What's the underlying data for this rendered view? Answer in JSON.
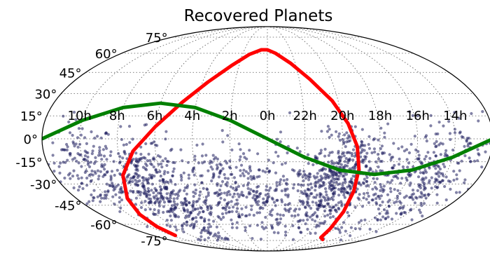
{
  "chart_data": {
    "type": "scatter",
    "title": "Recovered Planets",
    "projection": "mollweide",
    "grid": true,
    "lat_tick_labels": [
      "75°",
      "60°",
      "45°",
      "30°",
      "15°",
      "0°",
      "-15°",
      "-30°",
      "-45°",
      "-60°",
      "-75°"
    ],
    "lat_ticks_deg": [
      75,
      60,
      45,
      30,
      15,
      0,
      -15,
      -30,
      -45,
      -60,
      -75
    ],
    "lon_tick_labels": [
      "10h",
      "8h",
      "6h",
      "4h",
      "2h",
      "0h",
      "22h",
      "20h",
      "18h",
      "16h",
      "14h"
    ],
    "lon_ticks_deg": [
      -150,
      -120,
      -90,
      -60,
      -30,
      0,
      30,
      60,
      90,
      120,
      150
    ],
    "colors": {
      "points": "#1c1c5c",
      "galactic_plane": "#ff0000",
      "ecliptic": "#008000",
      "grid": "#555555",
      "outline": "#000000"
    },
    "galactic_plane": {
      "lon": [
        -145,
        -142,
        -138,
        -132,
        -122,
        -108,
        -90,
        -72,
        -55,
        -38,
        -22,
        -8,
        0,
        10,
        25,
        40,
        55,
        65,
        72,
        76,
        78,
        80,
        84,
        90,
        100
      ],
      "lat": [
        -70,
        -62,
        -52,
        -40,
        -24,
        -8,
        8,
        24,
        38,
        50,
        59,
        63,
        63,
        60,
        52,
        40,
        25,
        10,
        -5,
        -20,
        -35,
        -50,
        -64,
        -72,
        -74
      ]
    },
    "ecliptic": {
      "lon": [
        -180,
        -150,
        -120,
        -90,
        -60,
        -30,
        0,
        30,
        60,
        90,
        120,
        150,
        180
      ],
      "lat": [
        0,
        12,
        20.5,
        23.4,
        20.5,
        12,
        0,
        -12,
        -20.5,
        -23.4,
        -20.5,
        -12,
        0
      ]
    },
    "point_clusters": [
      {
        "lon": -150,
        "lat": -20,
        "n": 160
      },
      {
        "lon": -110,
        "lat": -28,
        "n": 280
      },
      {
        "lon": -85,
        "lat": -45,
        "n": 160
      },
      {
        "lon": -45,
        "lat": -32,
        "n": 170
      },
      {
        "lon": -5,
        "lat": -38,
        "n": 150
      },
      {
        "lon": 40,
        "lat": -35,
        "n": 190
      },
      {
        "lon": 68,
        "lat": -25,
        "n": 340
      },
      {
        "lon": 105,
        "lat": -35,
        "n": 120
      },
      {
        "lon": 140,
        "lat": -25,
        "n": 170
      },
      {
        "lon": 155,
        "lat": -15,
        "n": 60
      }
    ]
  }
}
